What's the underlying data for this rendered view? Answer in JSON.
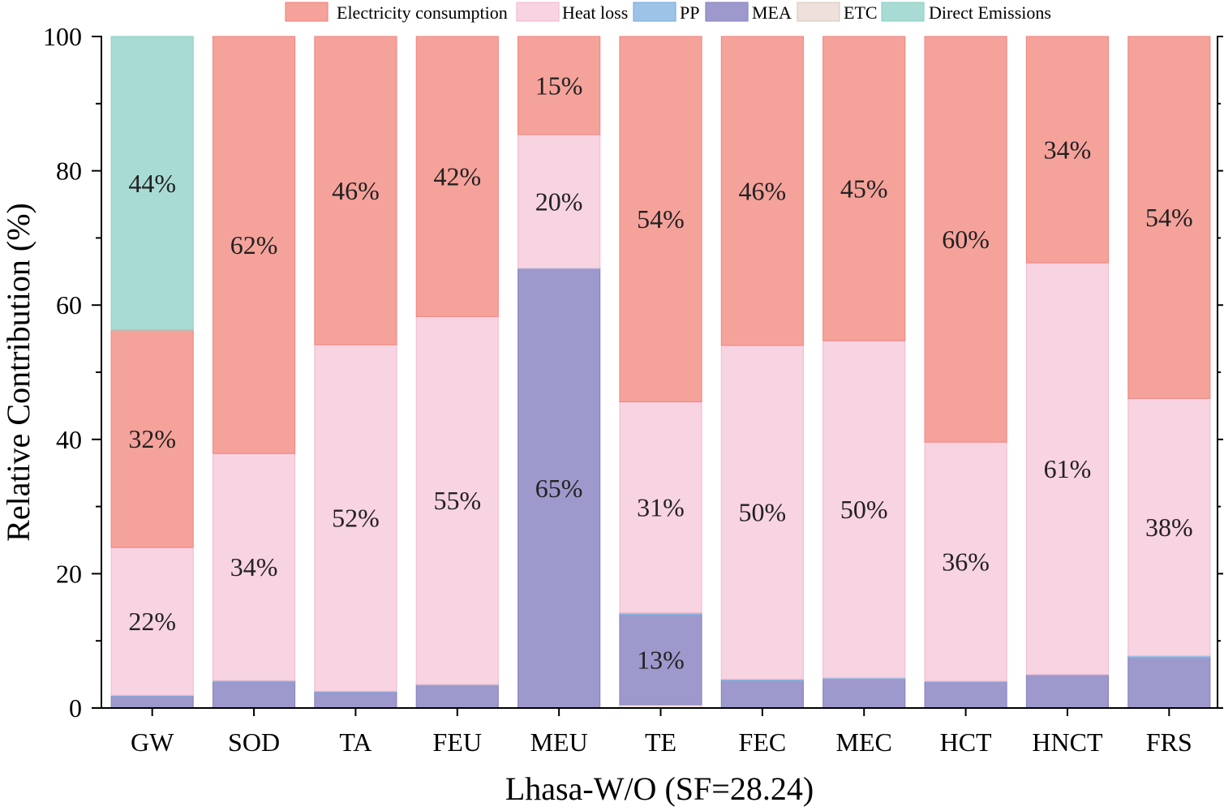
{
  "chart_data": {
    "type": "bar",
    "stacked": true,
    "categories": [
      "GW",
      "SOD",
      "TA",
      "FEU",
      "MEU",
      "TE",
      "FEC",
      "MEC",
      "HCT",
      "HNCT",
      "FRS"
    ],
    "xlabel": "Lhasa-W/O (SF=28.24)",
    "ylabel": "Relative Contribution (%)",
    "ylim": [
      0,
      100
    ],
    "yticks": [
      0,
      20,
      40,
      60,
      80,
      100
    ],
    "grid": false,
    "legend": "top",
    "series": [
      {
        "name": "Electricity consumption",
        "color": "#F5A29B",
        "edge": "#F08A84",
        "values": [
          32.4,
          62.1,
          45.9,
          41.7,
          14.6,
          54.4,
          46.0,
          45.3,
          60.4,
          33.7,
          53.9
        ],
        "labels": [
          "32%",
          "62%",
          "46%",
          "42%",
          "15%",
          "54%",
          "46%",
          "45%",
          "60%",
          "34%",
          "54%"
        ]
      },
      {
        "name": "Heat loss",
        "color": "#F8D3E2",
        "edge": "#F2BED3",
        "values": [
          22.0,
          33.8,
          51.6,
          54.8,
          19.9,
          31.4,
          49.7,
          50.2,
          35.6,
          61.3,
          38.3
        ],
        "labels": [
          "22%",
          "34%",
          "52%",
          "55%",
          "20%",
          "31%",
          "50%",
          "50%",
          "36%",
          "61%",
          "38%"
        ]
      },
      {
        "name": "PP",
        "color": "#9DC3E6",
        "edge": "#7FAEDB",
        "values": [
          0.1,
          0.2,
          0.1,
          0.1,
          0.1,
          0.3,
          0.2,
          0.2,
          0.1,
          0.1,
          0.3
        ],
        "labels": [
          null,
          null,
          null,
          null,
          null,
          null,
          null,
          null,
          null,
          null,
          null
        ]
      },
      {
        "name": "MEA",
        "color": "#9E99CC",
        "edge": "#8C86C0",
        "values": [
          1.8,
          3.9,
          2.4,
          3.4,
          65.4,
          13.4,
          4.1,
          4.3,
          3.9,
          4.9,
          7.5
        ],
        "labels": [
          null,
          null,
          null,
          null,
          "65%",
          "13%",
          null,
          null,
          null,
          null,
          null
        ]
      },
      {
        "name": "ETC",
        "color": "#EEE0DA",
        "edge": "#DCCBC3",
        "values": [
          0,
          0,
          0,
          0,
          0,
          0.5,
          0,
          0,
          0,
          0,
          0
        ],
        "labels": [
          null,
          null,
          null,
          null,
          null,
          null,
          null,
          null,
          null,
          null,
          null
        ]
      },
      {
        "name": "Direct Emissions",
        "color": "#A8DBD3",
        "edge": "#93D1C7",
        "values": [
          43.7,
          0,
          0,
          0,
          0,
          0,
          0,
          0,
          0,
          0,
          0
        ],
        "labels": [
          "44%",
          null,
          null,
          null,
          null,
          null,
          null,
          null,
          null,
          null,
          null
        ]
      }
    ]
  }
}
